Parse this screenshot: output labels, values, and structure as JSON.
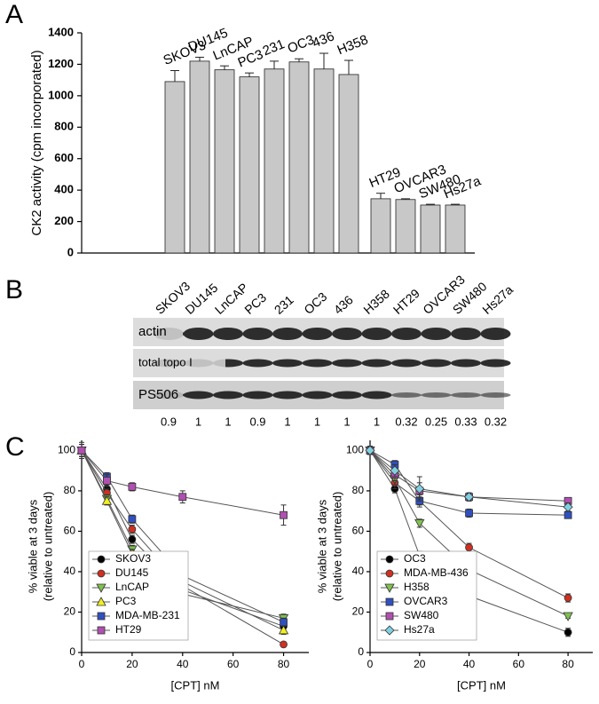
{
  "chart_data": [
    {
      "type": "bar",
      "panel": "A",
      "ylabel": "CK2 activity (cpm incorporated)",
      "categories": [
        "SKOV3",
        "DU145",
        "LnCAP",
        "PC3",
        "231",
        "OC3",
        "436",
        "H358",
        "HT29",
        "OVCAR3",
        "SW480",
        "Hs27a"
      ],
      "values": [
        1090,
        1220,
        1165,
        1120,
        1170,
        1215,
        1170,
        1135,
        345,
        340,
        305,
        305
      ],
      "errors": [
        70,
        25,
        25,
        25,
        50,
        20,
        100,
        90,
        35,
        5,
        5,
        5
      ],
      "color": "#c8c8c8",
      "ylim": [
        0,
        1400
      ],
      "yticks": [
        0,
        200,
        400,
        600,
        800,
        1000,
        1200,
        1400
      ]
    },
    {
      "type": "line",
      "panel": "C",
      "xlabel": "[CPT] nM",
      "ylabel": [
        "% viable at 3 days",
        "(relative to untreated)"
      ],
      "x": [
        0,
        10,
        20,
        40,
        80
      ],
      "xlim": [
        0,
        90
      ],
      "xticks": [
        0,
        20,
        40,
        60,
        80
      ],
      "ylim": [
        0,
        105
      ],
      "yticks": [
        0,
        20,
        40,
        60,
        80,
        100
      ],
      "series": [
        {
          "name": "SKOV3",
          "color": "#000000",
          "marker": "circle",
          "values": [
            100,
            81,
            56,
            31,
            13
          ],
          "errors": [
            3,
            2,
            2,
            2,
            2
          ]
        },
        {
          "name": "DU145",
          "color": "#d03020",
          "marker": "circle",
          "values": [
            100,
            79,
            61,
            33,
            4
          ],
          "errors": [
            3,
            2,
            2,
            2,
            1
          ]
        },
        {
          "name": "LnCAP",
          "color": "#80c050",
          "marker": "triangle-down",
          "values": [
            100,
            76,
            51,
            29,
            17
          ],
          "errors": [
            3,
            2,
            2,
            2,
            2
          ]
        },
        {
          "name": "PC3",
          "color": "#f0f020",
          "marker": "triangle-up",
          "values": [
            100,
            75,
            49,
            35,
            11
          ],
          "errors": [
            3,
            2,
            2,
            2,
            2
          ]
        },
        {
          "name": "MDA-MB-231",
          "color": "#3050c0",
          "marker": "square",
          "values": [
            100,
            87,
            66,
            38,
            15
          ],
          "errors": [
            3,
            2,
            2,
            2,
            2
          ]
        },
        {
          "name": "HT29",
          "color": "#b050b0",
          "marker": "square",
          "values": [
            100,
            85,
            82,
            77,
            68
          ],
          "errors": [
            4,
            3,
            2,
            3,
            5
          ]
        }
      ]
    },
    {
      "type": "line",
      "xlabel": "[CPT] nM",
      "ylabel": [
        "% viable at 3 days",
        "(relative to untreated)"
      ],
      "x": [
        0,
        10,
        20,
        40,
        80
      ],
      "xlim": [
        0,
        90
      ],
      "xticks": [
        0,
        20,
        40,
        60,
        80
      ],
      "ylim": [
        0,
        105
      ],
      "yticks": [
        0,
        20,
        40,
        60,
        80,
        100
      ],
      "series": [
        {
          "name": "OC3",
          "color": "#000000",
          "marker": "circle",
          "values": [
            100,
            81,
            48,
            28,
            10
          ],
          "errors": [
            2,
            2,
            2,
            2,
            2
          ]
        },
        {
          "name": "MDA-MB-436",
          "color": "#d03020",
          "marker": "circle",
          "values": [
            100,
            84,
            75,
            52,
            27
          ],
          "errors": [
            2,
            3,
            3,
            2,
            2
          ]
        },
        {
          "name": "H358",
          "color": "#80c050",
          "marker": "triangle-down",
          "values": [
            100,
            86,
            64,
            41,
            18
          ],
          "errors": [
            2,
            3,
            2,
            2,
            1
          ]
        },
        {
          "name": "OVCAR3",
          "color": "#3050c0",
          "marker": "square",
          "values": [
            100,
            93,
            75,
            69,
            68
          ],
          "errors": [
            2,
            2,
            2,
            2,
            1
          ]
        },
        {
          "name": "SW480",
          "color": "#b050b0",
          "marker": "square",
          "values": [
            100,
            88,
            80,
            77,
            75
          ],
          "errors": [
            2,
            3,
            4,
            2,
            1
          ]
        },
        {
          "name": "Hs27a",
          "color": "#80d0e0",
          "marker": "diamond",
          "values": [
            100,
            90,
            81,
            77,
            72
          ],
          "errors": [
            2,
            3,
            6,
            2,
            2
          ]
        }
      ]
    }
  ],
  "blot": {
    "panel": "B",
    "lanes": [
      "SKOV3",
      "DU145",
      "LnCAP",
      "PC3",
      "231",
      "OC3",
      "436",
      "H358",
      "HT29",
      "OVCAR3",
      "SW480",
      "Hs27a"
    ],
    "rows": [
      "actin",
      "total topo I",
      "PS506"
    ],
    "ratios": [
      0.9,
      1,
      1,
      0.9,
      1,
      1,
      1,
      1,
      0.32,
      0.25,
      0.33,
      0.32
    ]
  }
}
